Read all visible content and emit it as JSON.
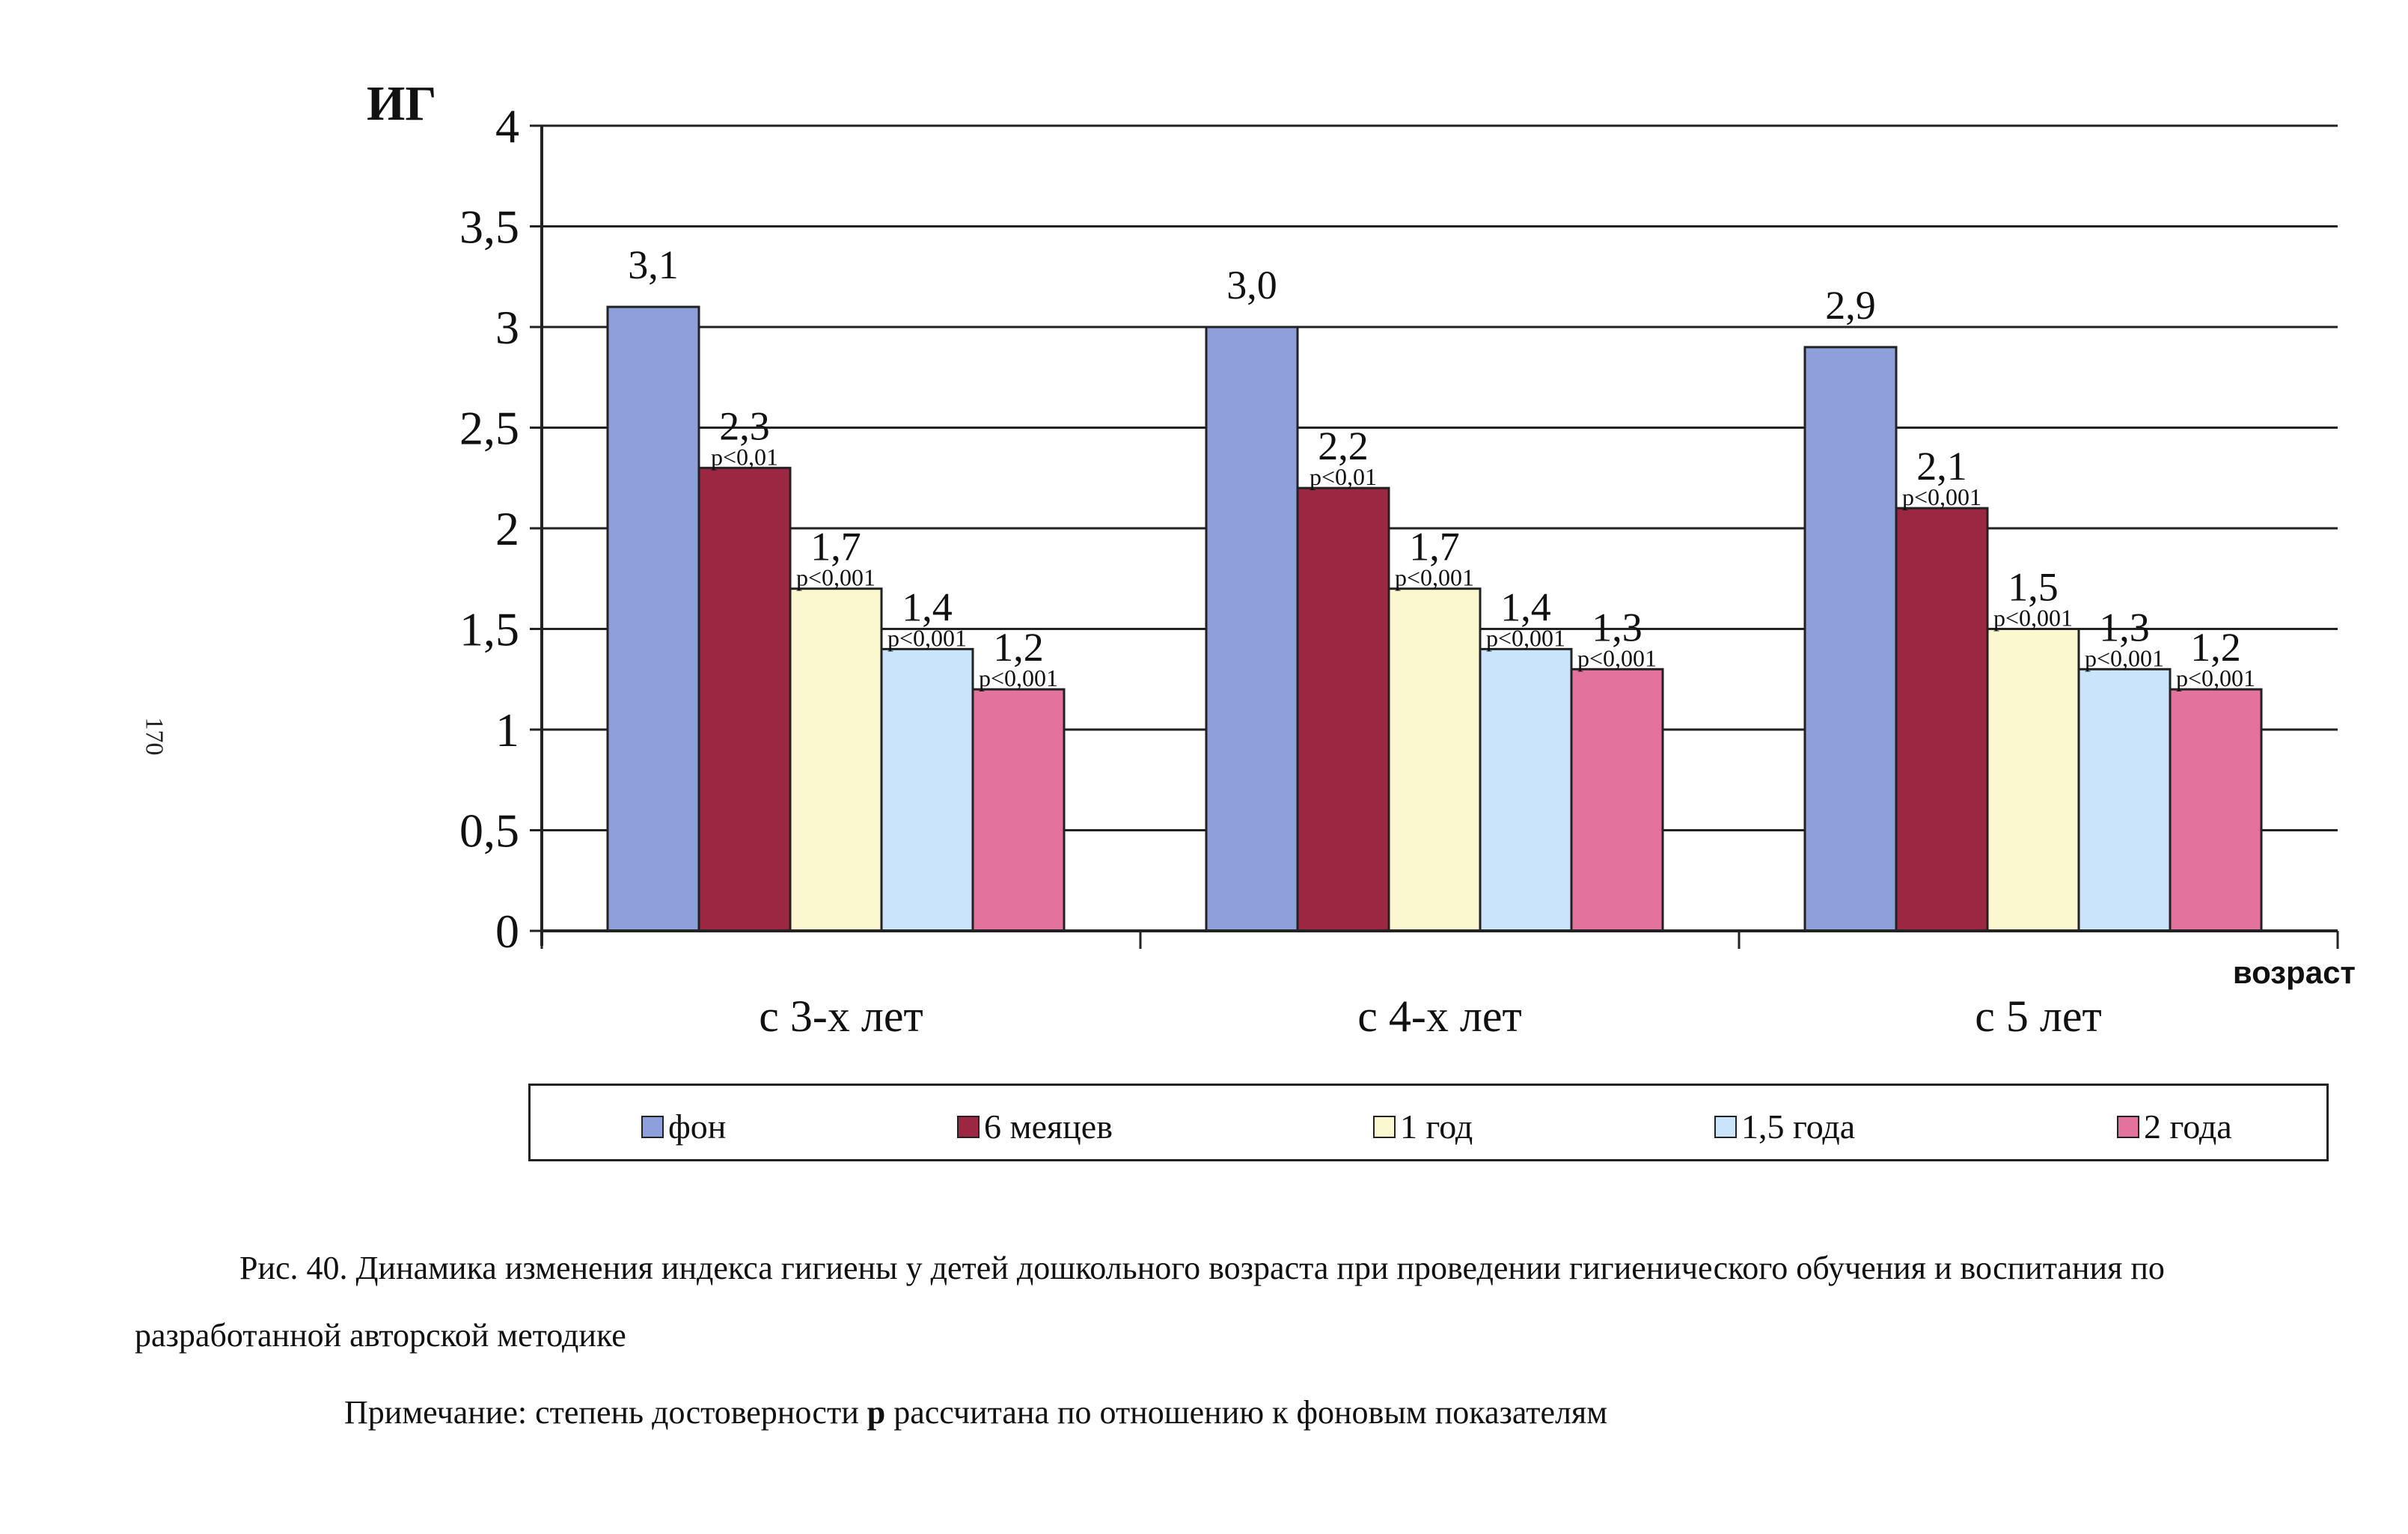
{
  "page": {
    "number": "170"
  },
  "chart_data": {
    "type": "bar",
    "ylabel": "ИГ",
    "xlabel": "возраст",
    "ylim": [
      0,
      4
    ],
    "ytick_labels": [
      "0",
      "0,5",
      "1",
      "1,5",
      "2",
      "2,5",
      "3",
      "3,5",
      "4"
    ],
    "grid": true,
    "legend_position": "bottom",
    "categories": [
      "с 3-х лет",
      "с 4-х лет",
      "с 5 лет"
    ],
    "series": [
      {
        "name": "фон",
        "color": "#8ea0dc",
        "values": [
          3.1,
          3.0,
          2.9
        ],
        "labels": [
          "3,1",
          "3,0",
          "2,9"
        ],
        "p": [
          "",
          "",
          ""
        ]
      },
      {
        "name": "6 меяцев",
        "color": "#9b2743",
        "values": [
          2.3,
          2.2,
          2.1
        ],
        "labels": [
          "2,3",
          "2,2",
          "2,1"
        ],
        "p": [
          "p<0,01",
          "p<0,01",
          "p<0,001"
        ]
      },
      {
        "name": "1 год",
        "color": "#fbf8cf",
        "values": [
          1.7,
          1.7,
          1.5
        ],
        "labels": [
          "1,7",
          "1,7",
          "1,5"
        ],
        "p": [
          "p<0,001",
          "p<0,001",
          "p<0,001"
        ]
      },
      {
        "name": "1,5 года",
        "color": "#c9e4fb",
        "values": [
          1.4,
          1.4,
          1.3
        ],
        "labels": [
          "1,4",
          "1,4",
          "1,3"
        ],
        "p": [
          "p<0,001",
          "p<0,001",
          "p<0,001"
        ]
      },
      {
        "name": "2 года",
        "color": "#e3739c",
        "values": [
          1.2,
          1.3,
          1.2
        ],
        "labels": [
          "1,2",
          "1,3",
          "1,2"
        ],
        "p": [
          "p<0,001",
          "p<0,001",
          "p<0,001"
        ]
      }
    ]
  },
  "caption": {
    "text": "Рис. 40. Динамика изменения индекса гигиены у детей дошкольного возраста при проведении гигиенического обучения и воспитания по разработанной авторской методике"
  },
  "note": {
    "prefix": "Примечание: степень достоверности ",
    "bold": "р",
    "suffix": " рассчитана по отношению к фоновым показателям"
  }
}
